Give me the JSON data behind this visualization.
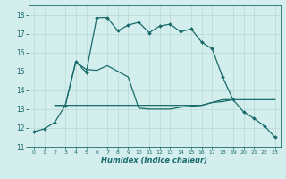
{
  "xlabel": "Humidex (Indice chaleur)",
  "bg_color": "#d4eeed",
  "line_color": "#1a6b6b",
  "grid_major_color": "#b8d8d5",
  "grid_minor_color": "#cce8e5",
  "xlim": [
    -0.5,
    23.5
  ],
  "ylim": [
    11,
    18.5
  ],
  "xticks": [
    0,
    1,
    2,
    3,
    4,
    5,
    6,
    7,
    8,
    9,
    10,
    11,
    12,
    13,
    14,
    15,
    16,
    17,
    18,
    19,
    20,
    21,
    22,
    23
  ],
  "yticks": [
    11,
    12,
    13,
    14,
    15,
    16,
    17,
    18
  ],
  "series1_x": [
    0,
    1,
    2,
    3,
    4,
    5,
    6,
    7,
    8,
    9,
    10,
    11,
    12,
    13,
    14,
    15,
    16,
    17,
    18,
    19,
    20,
    21,
    22,
    23
  ],
  "series1_y": [
    11.8,
    11.95,
    12.3,
    13.2,
    15.5,
    14.95,
    17.85,
    17.85,
    17.15,
    17.45,
    17.6,
    17.05,
    17.4,
    17.5,
    17.1,
    17.25,
    16.55,
    16.2,
    14.7,
    13.5,
    12.85,
    12.5,
    12.1,
    11.5
  ],
  "series2_x": [
    2,
    3,
    4,
    5,
    6,
    7,
    8,
    9,
    10,
    11,
    12,
    13,
    14,
    15,
    16,
    17,
    18,
    19
  ],
  "series2_y": [
    13.2,
    13.2,
    13.2,
    13.2,
    13.2,
    13.2,
    13.2,
    13.2,
    13.2,
    13.2,
    13.2,
    13.2,
    13.2,
    13.2,
    13.2,
    13.35,
    13.4,
    13.5
  ],
  "series3_x": [
    2,
    3,
    4,
    5,
    6,
    7,
    8,
    9,
    10,
    11,
    12,
    13,
    14,
    15,
    16,
    17,
    18,
    19,
    20,
    21,
    22,
    23
  ],
  "series3_y": [
    13.2,
    13.2,
    15.5,
    15.1,
    15.05,
    15.3,
    15.0,
    14.7,
    13.05,
    13.0,
    13.0,
    13.0,
    13.1,
    13.15,
    13.2,
    13.35,
    13.5,
    13.5,
    13.5,
    13.5,
    13.5,
    13.5
  ]
}
